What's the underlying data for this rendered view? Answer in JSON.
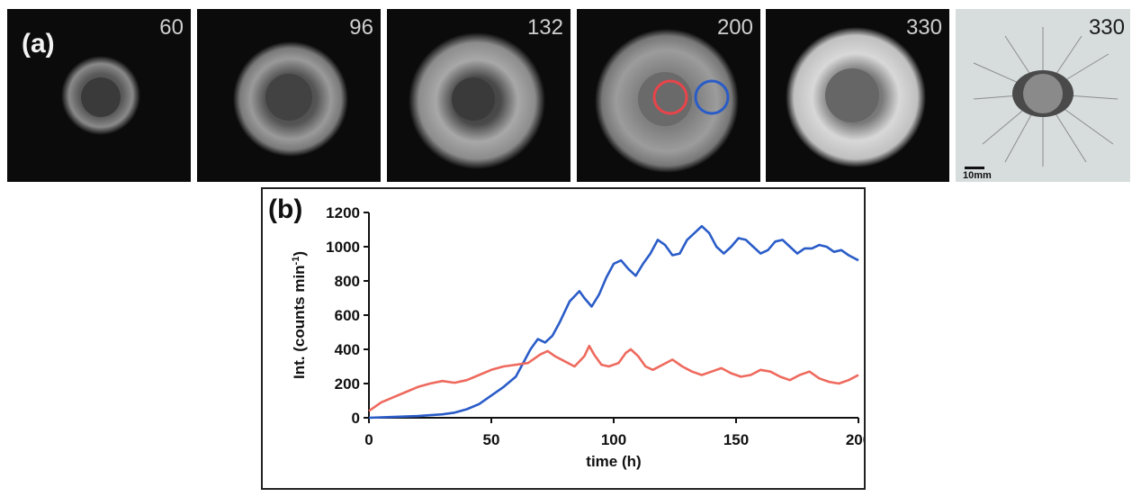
{
  "panel_a": {
    "label": "(a)",
    "frames": [
      {
        "label": "60"
      },
      {
        "label": "96"
      },
      {
        "label": "132"
      },
      {
        "label": "200"
      },
      {
        "label": "330"
      },
      {
        "label": "330"
      }
    ],
    "scale_bar_label": "10mm",
    "roi_colors": {
      "red": "#e8444a",
      "blue": "#2a5cc8"
    }
  },
  "panel_b": {
    "label": "(b)"
  },
  "chart_data": {
    "type": "line",
    "xlabel": "time (h)",
    "ylabel_main": "Int. (counts min",
    "ylabel_sup": "-1",
    "ylabel_close": ")",
    "xlim": [
      0,
      200
    ],
    "ylim": [
      0,
      1200
    ],
    "xticks": [
      0,
      50,
      100,
      150,
      200
    ],
    "yticks": [
      0,
      200,
      400,
      600,
      800,
      1000,
      1200
    ],
    "grid": false,
    "series": [
      {
        "color": "#2a5cc8",
        "x": [
          0,
          10,
          20,
          30,
          35,
          40,
          45,
          50,
          55,
          60,
          63,
          66,
          69,
          72,
          75,
          78,
          82,
          86,
          88,
          91,
          94,
          97,
          100,
          103,
          106,
          109,
          112,
          115,
          118,
          121,
          124,
          127,
          130,
          133,
          136,
          139,
          142,
          145,
          148,
          151,
          154,
          157,
          160,
          163,
          166,
          169,
          172,
          175,
          178,
          181,
          184,
          187,
          190,
          193,
          196,
          200
        ],
        "y": [
          0,
          5,
          10,
          20,
          30,
          50,
          80,
          130,
          180,
          240,
          320,
          400,
          460,
          440,
          480,
          560,
          680,
          740,
          700,
          650,
          720,
          820,
          900,
          920,
          870,
          830,
          900,
          960,
          1040,
          1010,
          950,
          960,
          1040,
          1080,
          1120,
          1080,
          1000,
          960,
          1000,
          1050,
          1040,
          1000,
          960,
          980,
          1030,
          1040,
          1000,
          960,
          990,
          990,
          1010,
          1000,
          970,
          980,
          950,
          920
        ]
      },
      {
        "color": "#ee6a5e",
        "x": [
          0,
          5,
          10,
          15,
          20,
          25,
          30,
          35,
          40,
          45,
          50,
          55,
          60,
          65,
          70,
          73,
          76,
          80,
          84,
          88,
          90,
          92,
          95,
          98,
          102,
          105,
          107,
          110,
          113,
          116,
          120,
          124,
          128,
          132,
          136,
          140,
          144,
          148,
          152,
          156,
          160,
          164,
          168,
          172,
          176,
          180,
          184,
          188,
          192,
          196,
          200
        ],
        "y": [
          40,
          90,
          120,
          150,
          180,
          200,
          215,
          205,
          220,
          250,
          280,
          300,
          310,
          320,
          370,
          390,
          360,
          330,
          300,
          360,
          420,
          370,
          310,
          300,
          320,
          380,
          400,
          360,
          300,
          280,
          310,
          340,
          300,
          270,
          250,
          270,
          290,
          260,
          240,
          250,
          280,
          270,
          240,
          220,
          250,
          270,
          230,
          210,
          200,
          220,
          250
        ]
      }
    ]
  }
}
